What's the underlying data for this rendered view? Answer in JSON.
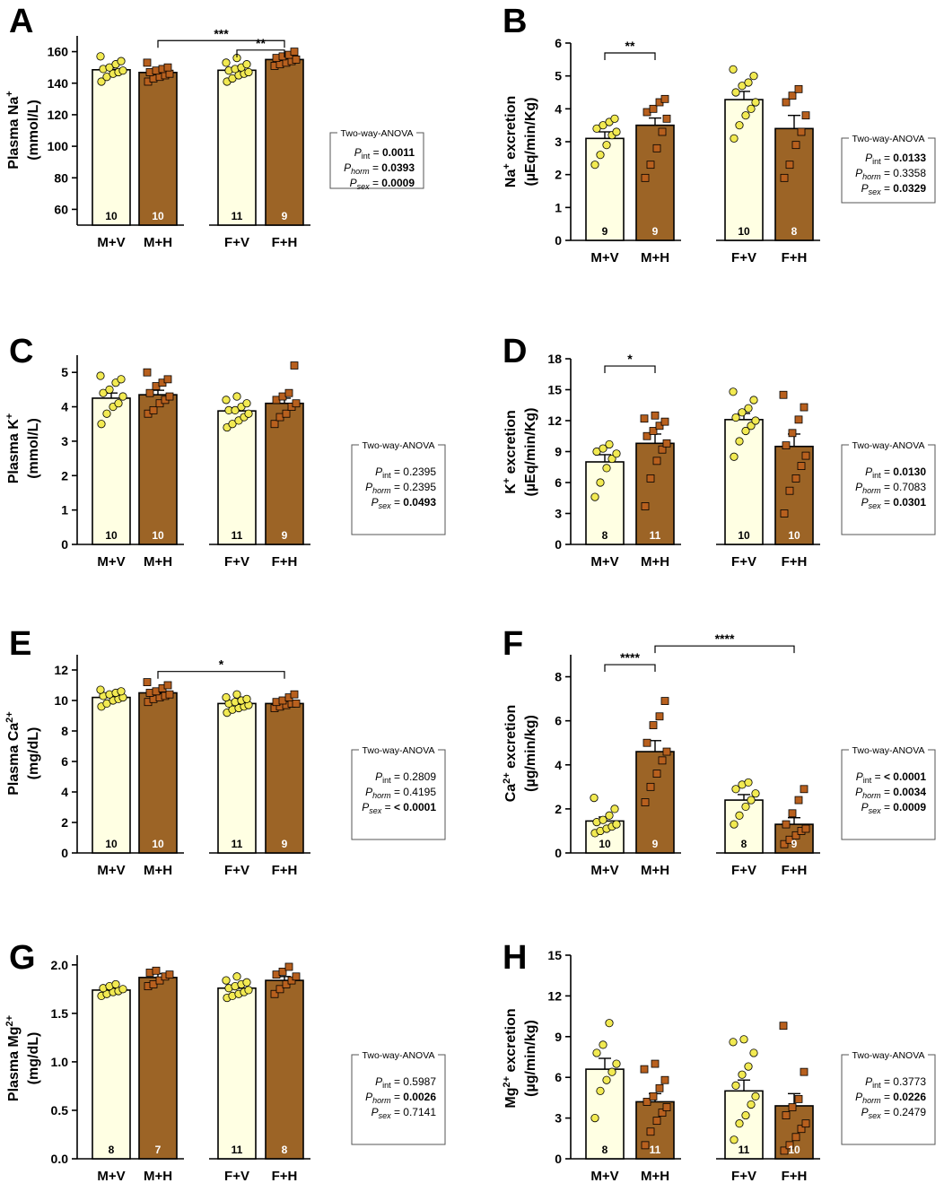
{
  "figure": {
    "categories": [
      "M+V",
      "M+H",
      "F+V",
      "F+H"
    ],
    "colors": {
      "vehicle_fill": "#ffffe3",
      "hormone_fill": "#9c6426",
      "vehicle_dot": "#f2ea52",
      "hormone_dot": "#b8601e",
      "axis": "#000000"
    },
    "legend_title": "Two-way-ANOVA",
    "stat_labels": {
      "int": "int",
      "horm": "horm",
      "sex": "sex"
    }
  },
  "chart_data": [
    {
      "panel": "A",
      "type": "bar",
      "ylabel_lines": [
        "Plasma Na+",
        "(mmol/L)"
      ],
      "ylim": [
        50,
        170
      ],
      "yticks": [
        60,
        80,
        100,
        120,
        140,
        160
      ],
      "categories": [
        "M+V",
        "M+H",
        "F+V",
        "F+H"
      ],
      "values": [
        148.5,
        146.8,
        148.2,
        155.0
      ],
      "sem": [
        1.2,
        1.0,
        1.3,
        0.9
      ],
      "n": [
        "10",
        "10",
        "11",
        "9"
      ],
      "points": [
        [
          141,
          144,
          146,
          147,
          148,
          149,
          150,
          152,
          154,
          157
        ],
        [
          141,
          143,
          144,
          145,
          146,
          147,
          148,
          149,
          150,
          153
        ],
        [
          141,
          143,
          145,
          146,
          147,
          148,
          149,
          150,
          152,
          153,
          156
        ],
        [
          151,
          152,
          153,
          154,
          155,
          156,
          157,
          158,
          160
        ]
      ],
      "brackets": [
        {
          "from": 1,
          "to": 3,
          "y": 167,
          "label": "***"
        },
        {
          "from": 2,
          "to": 3,
          "y": 161,
          "label": "**"
        }
      ],
      "anova": {
        "int": "0.0011",
        "horm": "0.0393",
        "sex": "0.0009"
      },
      "bold": [
        "int",
        "horm",
        "sex"
      ]
    },
    {
      "panel": "B",
      "type": "bar",
      "ylabel_lines": [
        "Na+ excretion",
        "(µEq/min/Kg)"
      ],
      "ylim": [
        0,
        6
      ],
      "yticks": [
        0,
        1,
        2,
        3,
        4,
        5,
        6
      ],
      "categories": [
        "M+V",
        "M+H",
        "F+V",
        "F+H"
      ],
      "values": [
        3.1,
        3.5,
        4.28,
        3.4
      ],
      "sem": [
        0.2,
        0.22,
        0.25,
        0.4
      ],
      "n": [
        "9",
        "9",
        "10",
        "8"
      ],
      "points": [
        [
          2.3,
          2.6,
          2.9,
          3.2,
          3.3,
          3.4,
          3.5,
          3.6,
          3.7
        ],
        [
          1.9,
          2.3,
          2.8,
          3.3,
          3.7,
          3.9,
          4.0,
          4.2,
          4.3
        ],
        [
          3.1,
          3.5,
          3.8,
          4.0,
          4.2,
          4.5,
          4.7,
          4.8,
          5.0,
          5.2
        ],
        [
          1.9,
          2.3,
          2.9,
          3.3,
          3.8,
          4.2,
          4.4,
          4.6
        ]
      ],
      "brackets": [
        {
          "from": 0,
          "to": 1,
          "y": 5.7,
          "label": "**"
        }
      ],
      "anova": {
        "int": "0.0133",
        "horm": "0.3358",
        "sex": "0.0329"
      },
      "bold": [
        "int",
        "sex"
      ]
    },
    {
      "panel": "C",
      "type": "bar",
      "ylabel_lines": [
        "Plasma K+",
        "(mmol/L)"
      ],
      "ylim": [
        0,
        5.5
      ],
      "yticks": [
        0,
        1,
        2,
        3,
        4,
        5
      ],
      "categories": [
        "M+V",
        "M+H",
        "F+V",
        "F+H"
      ],
      "values": [
        4.25,
        4.35,
        3.88,
        4.1
      ],
      "sem": [
        0.15,
        0.13,
        0.09,
        0.15
      ],
      "n": [
        "10",
        "10",
        "11",
        "9"
      ],
      "points": [
        [
          3.5,
          3.8,
          4.0,
          4.1,
          4.3,
          4.4,
          4.5,
          4.7,
          4.8,
          4.9
        ],
        [
          3.8,
          3.9,
          4.1,
          4.2,
          4.3,
          4.4,
          4.6,
          4.7,
          4.8,
          5.0
        ],
        [
          3.4,
          3.5,
          3.6,
          3.7,
          3.8,
          3.9,
          3.9,
          4.0,
          4.1,
          4.2,
          4.3
        ],
        [
          3.5,
          3.7,
          3.8,
          4.0,
          4.1,
          4.2,
          4.3,
          4.4,
          5.2
        ]
      ],
      "brackets": [],
      "anova": {
        "int": "0.2395",
        "horm": "0.2395",
        "sex": "0.0493"
      },
      "bold": [
        "sex"
      ]
    },
    {
      "panel": "D",
      "type": "bar",
      "ylabel_lines": [
        "K+ excretion",
        "(µEq/min/Kg)"
      ],
      "ylim": [
        0,
        18
      ],
      "yticks": [
        0,
        3,
        6,
        9,
        12,
        15,
        18
      ],
      "categories": [
        "M+V",
        "M+H",
        "F+V",
        "F+H"
      ],
      "values": [
        8.0,
        9.8,
        12.1,
        9.5
      ],
      "sem": [
        0.7,
        0.9,
        0.6,
        1.2
      ],
      "n": [
        "8",
        "11",
        "10",
        "10"
      ],
      "points": [
        [
          4.6,
          6.0,
          7.4,
          8.3,
          8.8,
          9.0,
          9.3,
          9.7
        ],
        [
          3.7,
          6.4,
          8.1,
          9.2,
          9.8,
          10.5,
          11.0,
          11.5,
          11.9,
          12.2,
          12.5
        ],
        [
          8.5,
          10.0,
          11.0,
          11.5,
          12.0,
          12.3,
          12.8,
          13.2,
          14.0,
          14.8
        ],
        [
          3.0,
          5.2,
          6.4,
          7.6,
          8.6,
          9.6,
          10.8,
          12.1,
          13.3,
          14.5
        ]
      ],
      "brackets": [
        {
          "from": 0,
          "to": 1,
          "y": 17.3,
          "label": "*"
        }
      ],
      "anova": {
        "int": "0.0130",
        "horm": "0.7083",
        "sex": "0.0301"
      },
      "bold": [
        "int",
        "sex"
      ]
    },
    {
      "panel": "E",
      "type": "bar",
      "ylabel_lines": [
        "Plasma Ca2+",
        "(mg/dL)"
      ],
      "ylim": [
        0,
        13
      ],
      "yticks": [
        0,
        2,
        4,
        6,
        8,
        10,
        12
      ],
      "categories": [
        "M+V",
        "M+H",
        "F+V",
        "F+H"
      ],
      "values": [
        10.2,
        10.5,
        9.8,
        9.8
      ],
      "sem": [
        0.12,
        0.15,
        0.14,
        0.12
      ],
      "n": [
        "10",
        "10",
        "11",
        "9"
      ],
      "points": [
        [
          9.6,
          9.8,
          10.0,
          10.1,
          10.2,
          10.3,
          10.4,
          10.5,
          10.6,
          10.7
        ],
        [
          9.9,
          10.1,
          10.2,
          10.3,
          10.4,
          10.5,
          10.6,
          10.8,
          11.0,
          11.2
        ],
        [
          9.2,
          9.4,
          9.5,
          9.6,
          9.7,
          9.8,
          9.9,
          10.0,
          10.1,
          10.2,
          10.4
        ],
        [
          9.5,
          9.6,
          9.7,
          9.8,
          9.8,
          9.9,
          10.0,
          10.2,
          10.4
        ]
      ],
      "brackets": [
        {
          "from": 1,
          "to": 3,
          "y": 11.9,
          "label": "*"
        }
      ],
      "anova": {
        "int": "0.2809",
        "horm": "0.4195",
        "sex": "< 0.0001"
      },
      "bold": [
        "sex"
      ]
    },
    {
      "panel": "F",
      "type": "bar",
      "ylabel_lines": [
        "Ca2+ excretion",
        "(µg/min/kg)"
      ],
      "ylim": [
        0,
        9
      ],
      "yticks": [
        0,
        2,
        4,
        6,
        8
      ],
      "categories": [
        "M+V",
        "M+H",
        "F+V",
        "F+H"
      ],
      "values": [
        1.45,
        4.6,
        2.4,
        1.3
      ],
      "sem": [
        0.18,
        0.5,
        0.25,
        0.3
      ],
      "n": [
        "10",
        "9",
        "8",
        "9"
      ],
      "points": [
        [
          0.9,
          1.0,
          1.1,
          1.2,
          1.3,
          1.4,
          1.5,
          1.7,
          2.0,
          2.5
        ],
        [
          2.3,
          3.0,
          3.6,
          4.2,
          4.6,
          5.0,
          5.8,
          6.2,
          6.9
        ],
        [
          1.3,
          1.7,
          2.1,
          2.4,
          2.7,
          2.9,
          3.1,
          3.2
        ],
        [
          0.4,
          0.6,
          0.8,
          1.0,
          1.1,
          1.3,
          1.8,
          2.4,
          2.9
        ]
      ],
      "brackets": [
        {
          "from": 0,
          "to": 1,
          "y": 8.55,
          "label": "****"
        },
        {
          "from": 1,
          "to": 3,
          "y": 9.4,
          "label": "****"
        }
      ],
      "anova": {
        "int": "< 0.0001",
        "horm": "0.0034",
        "sex": "0.0009"
      },
      "bold": [
        "int",
        "horm",
        "sex"
      ]
    },
    {
      "panel": "G",
      "type": "bar",
      "ylabel_lines": [
        "Plasma Mg2+",
        "(mg/dL)"
      ],
      "ylim": [
        0,
        2.1
      ],
      "yticks": [
        "0.0",
        "0.5",
        "1.0",
        "1.5",
        "2.0"
      ],
      "categories": [
        "M+V",
        "M+H",
        "F+V",
        "F+H"
      ],
      "values": [
        1.74,
        1.87,
        1.76,
        1.84
      ],
      "sem": [
        0.02,
        0.04,
        0.03,
        0.04
      ],
      "n": [
        "8",
        "7",
        "11",
        "8"
      ],
      "points": [
        [
          1.68,
          1.7,
          1.72,
          1.73,
          1.75,
          1.76,
          1.78,
          1.8
        ],
        [
          1.78,
          1.8,
          1.84,
          1.88,
          1.9,
          1.92,
          1.94
        ],
        [
          1.66,
          1.68,
          1.7,
          1.72,
          1.74,
          1.76,
          1.78,
          1.8,
          1.82,
          1.84,
          1.88
        ],
        [
          1.7,
          1.75,
          1.8,
          1.84,
          1.88,
          1.9,
          1.93,
          1.98
        ]
      ],
      "brackets": [],
      "anova": {
        "int": "0.5987",
        "horm": "0.0026",
        "sex": "0.7141"
      },
      "bold": [
        "horm"
      ]
    },
    {
      "panel": "H",
      "type": "bar",
      "ylabel_lines": [
        "Mg2+ excretion",
        "(µg/min/kg)"
      ],
      "ylim": [
        0,
        15
      ],
      "yticks": [
        0,
        3,
        6,
        9,
        12,
        15
      ],
      "categories": [
        "M+V",
        "M+H",
        "F+V",
        "F+H"
      ],
      "values": [
        6.6,
        4.2,
        5.0,
        3.9
      ],
      "sem": [
        0.8,
        0.6,
        0.8,
        0.9
      ],
      "n": [
        "8",
        "11",
        "11",
        "10"
      ],
      "points": [
        [
          3.0,
          5.0,
          5.8,
          6.4,
          7.0,
          7.8,
          8.4,
          10.0
        ],
        [
          1.0,
          2.0,
          2.8,
          3.4,
          3.8,
          4.2,
          4.6,
          5.2,
          5.8,
          6.6,
          7.0
        ],
        [
          1.4,
          2.6,
          3.2,
          4.0,
          4.6,
          5.4,
          6.2,
          6.8,
          7.8,
          8.6,
          8.8
        ],
        [
          0.6,
          1.0,
          1.6,
          2.2,
          2.6,
          3.2,
          3.8,
          4.4,
          6.4,
          9.8
        ]
      ],
      "brackets": [],
      "anova": {
        "int": "0.3773",
        "horm": "0.0226",
        "sex": "0.2479"
      },
      "bold": [
        "horm"
      ]
    }
  ]
}
